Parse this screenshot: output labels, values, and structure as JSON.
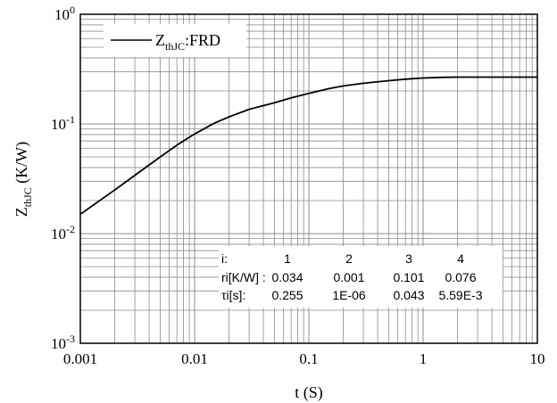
{
  "chart_data": {
    "type": "line",
    "x_scale": "log",
    "y_scale": "log",
    "xlim": [
      0.001,
      10
    ],
    "ylim": [
      0.001,
      1
    ],
    "xlabel": "t (S)",
    "ylabel": {
      "main": "Z",
      "sub": "thJC",
      "unit": " (K/W)"
    },
    "x_ticks": [
      "0.001",
      "0.01",
      "0.1",
      "1",
      "10"
    ],
    "y_ticks": [
      {
        "base": "10",
        "exp": "-3"
      },
      {
        "base": "10",
        "exp": "-2"
      },
      {
        "base": "10",
        "exp": "-1"
      },
      {
        "base": "10",
        "exp": "0"
      }
    ],
    "grid": true,
    "legend": {
      "position": "top-left",
      "main": "Z",
      "sub": "thJC",
      "suffix": ":FRD"
    },
    "series": [
      {
        "name": "ZthJC:FRD",
        "color": "#000000",
        "x": [
          0.001,
          0.002,
          0.003,
          0.005,
          0.007,
          0.01,
          0.015,
          0.02,
          0.03,
          0.05,
          0.07,
          0.1,
          0.15,
          0.2,
          0.3,
          0.5,
          0.7,
          1,
          1.5,
          2,
          3,
          5,
          10
        ],
        "y": [
          0.015,
          0.025,
          0.034,
          0.05,
          0.064,
          0.081,
          0.102,
          0.116,
          0.136,
          0.156,
          0.173,
          0.19,
          0.21,
          0.222,
          0.235,
          0.248,
          0.256,
          0.262,
          0.266,
          0.267,
          0.267,
          0.267,
          0.267
        ]
      }
    ],
    "annotation_table": {
      "header": [
        "i:",
        "1",
        "2",
        "3",
        "4"
      ],
      "rows": [
        [
          "ri[K/W] :",
          "0.034",
          "0.001",
          "0.101",
          "0.076"
        ],
        [
          "τi[s]:",
          "0.255",
          "1E-06",
          "0.043",
          "5.59E-3"
        ]
      ]
    }
  }
}
